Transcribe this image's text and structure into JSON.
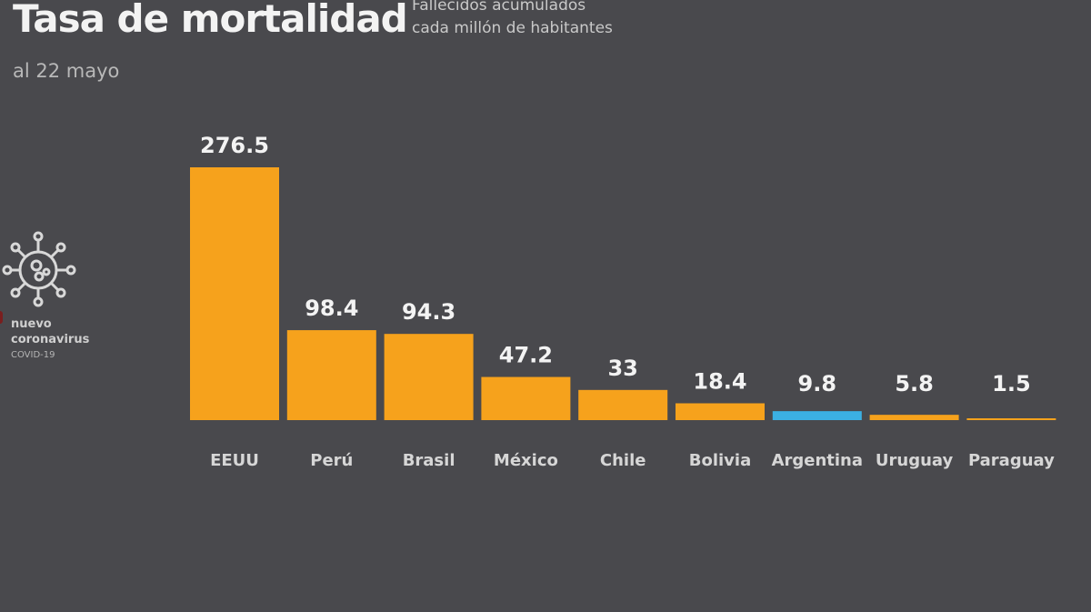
{
  "header": {
    "title": "Tasa de mortalidad",
    "subtitle_line1": "Fallecidos acumulados",
    "subtitle_line2": "cada millón de habitantes",
    "date": "al 22 mayo"
  },
  "badge": {
    "icon": "coronavirus-icon",
    "line1": "nuevo",
    "line2": "coronavirus",
    "line3": "COVID-19"
  },
  "colors": {
    "background": "#49494d",
    "bar": "#f6a21c",
    "highlight": "#3bb0e3",
    "text": "#f3f3f3"
  },
  "chart_data": {
    "type": "bar",
    "title": "Tasa de mortalidad",
    "subtitle": "Fallecidos acumulados cada millón de habitantes",
    "xlabel": "",
    "ylabel": "",
    "ylim": [
      0,
      276.5
    ],
    "grid": false,
    "categories": [
      "EEUU",
      "Perú",
      "Brasil",
      "México",
      "Chile",
      "Bolivia",
      "Argentina",
      "Uruguay",
      "Paraguay"
    ],
    "values": [
      276.5,
      98.4,
      94.3,
      47.2,
      33,
      18.4,
      9.8,
      5.8,
      1.5
    ],
    "value_labels": [
      "276.5",
      "98.4",
      "94.3",
      "47.2",
      "33",
      "18.4",
      "9.8",
      "5.8",
      "1.5"
    ],
    "highlight_category": "Argentina"
  }
}
